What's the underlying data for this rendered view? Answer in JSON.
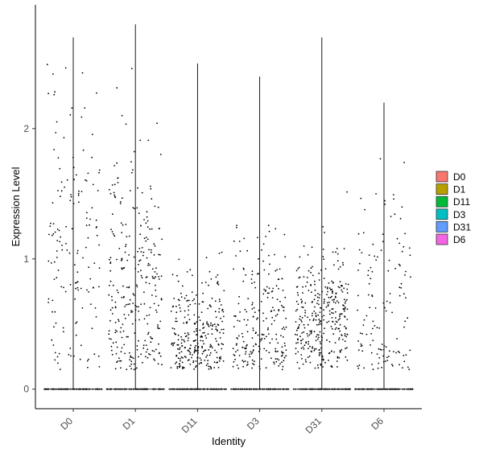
{
  "chart_data": {
    "type": "scatter",
    "subtype": "violin-jitter",
    "title": "",
    "xlabel": "Identity",
    "ylabel": "Expression Level",
    "categories": [
      "D0",
      "D1",
      "D11",
      "D3",
      "D31",
      "D6"
    ],
    "yticks": [
      0,
      1,
      2
    ],
    "ylim": [
      -0.15,
      2.95
    ],
    "legend": {
      "placement": "right",
      "entries": [
        {
          "label": "D0",
          "color": "#F8766D"
        },
        {
          "label": "D1",
          "color": "#B79F00"
        },
        {
          "label": "D11",
          "color": "#00BA38"
        },
        {
          "label": "D3",
          "color": "#00BFC4"
        },
        {
          "label": "D31",
          "color": "#619CFF"
        },
        {
          "label": "D6",
          "color": "#F564E3"
        }
      ]
    },
    "series": [
      {
        "name": "D0",
        "max": 2.7,
        "zero_fraction": 0.92,
        "nonzero_center": 1.0,
        "nonzero_spread": 0.6
      },
      {
        "name": "D1",
        "max": 2.8,
        "zero_fraction": 0.85,
        "nonzero_center": 0.8,
        "nonzero_spread": 0.55
      },
      {
        "name": "D11",
        "max": 2.5,
        "zero_fraction": 0.85,
        "nonzero_center": 0.4,
        "nonzero_spread": 0.25
      },
      {
        "name": "D3",
        "max": 2.4,
        "zero_fraction": 0.88,
        "nonzero_center": 0.45,
        "nonzero_spread": 0.35
      },
      {
        "name": "D31",
        "max": 2.7,
        "zero_fraction": 0.82,
        "nonzero_center": 0.55,
        "nonzero_spread": 0.25
      },
      {
        "name": "D6",
        "max": 2.2,
        "zero_fraction": 0.93,
        "nonzero_center": 0.6,
        "nonzero_spread": 0.45
      }
    ],
    "grid": false,
    "point_color": "#000000"
  }
}
